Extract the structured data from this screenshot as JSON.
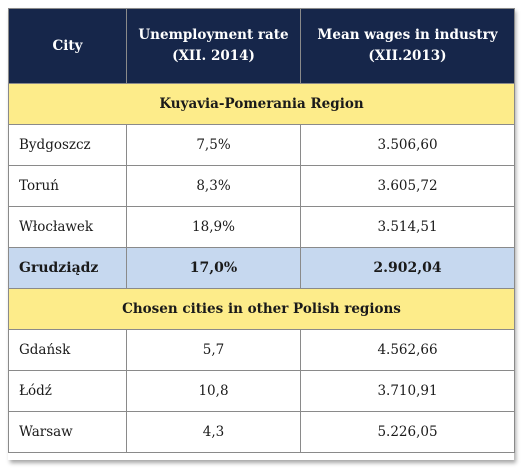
{
  "header": {
    "city": "City",
    "unemployment_line1": "Unemployment rate",
    "unemployment_line2": "(XII. 2014)",
    "wages_line1": "Mean wages in industry",
    "wages_line2": "(XII.2013)"
  },
  "section1": {
    "title": "Kuyavia-Pomerania Region",
    "rows": [
      {
        "city": "Bydgoszcz",
        "rate": "7,5%",
        "wage": "3.506,60"
      },
      {
        "city": "Toruń",
        "rate": "8,3%",
        "wage": "3.605,72"
      },
      {
        "city": "Włocławek",
        "rate": "18,9%",
        "wage": "3.514,51"
      },
      {
        "city": "Grudziądz",
        "rate": "17,0%",
        "wage": "2.902,04"
      }
    ]
  },
  "section2": {
    "title": "Chosen cities in other Polish regions",
    "rows": [
      {
        "city": "Gdańsk",
        "rate": "5,7",
        "wage": "4.562,66"
      },
      {
        "city": "Łódź",
        "rate": "10,8",
        "wage": "3.710,91"
      },
      {
        "city": "Warsaw",
        "rate": "4,3",
        "wage": "5.226,05"
      }
    ]
  },
  "colors": {
    "header_bg": "#16264a",
    "region_bg": "#fdec8a",
    "highlight_bg": "#c6d8ef"
  }
}
